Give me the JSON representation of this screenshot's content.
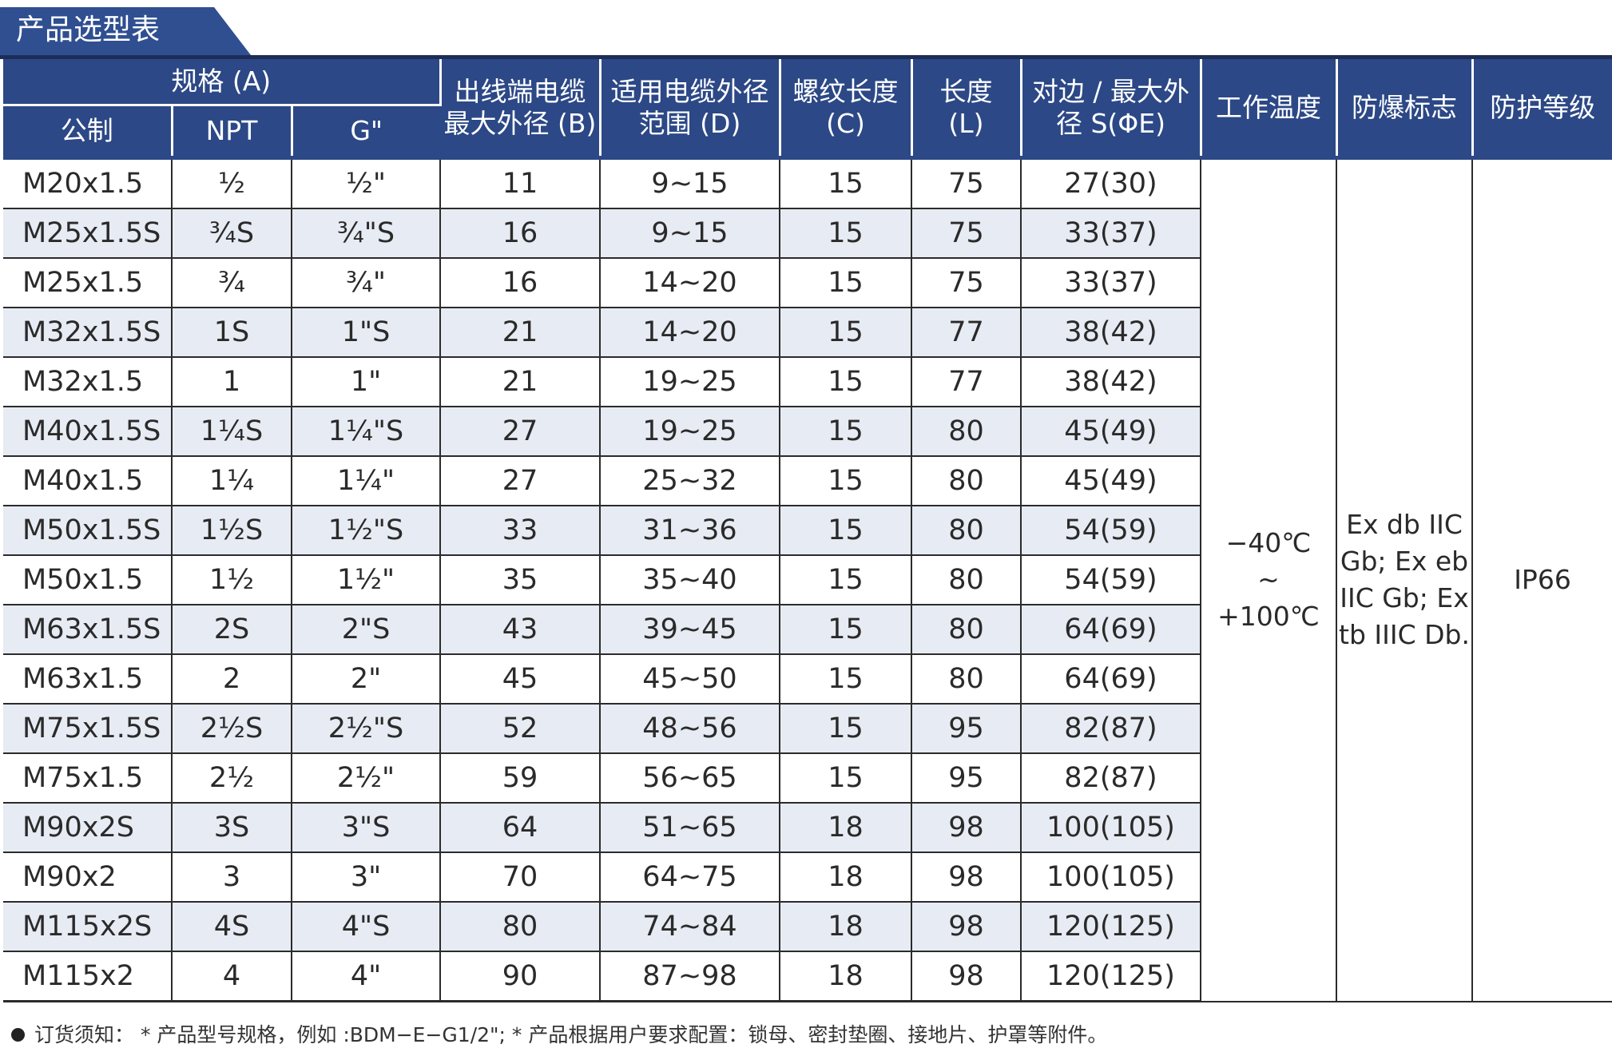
{
  "title": "产品选型表",
  "headers": {
    "spec_group": "规格 (A)",
    "metric": "公制",
    "npt": "NPT",
    "g": "G\"",
    "cable_max_line1": "出线端电缆",
    "cable_max_line2": "最大外径 (B)",
    "cable_range_line1": "适用电缆外径",
    "cable_range_line2": "范围 (D)",
    "thread_len_line1": "螺纹长度",
    "thread_len_line2": "(C)",
    "length_line1": "长度",
    "length_line2": "(L)",
    "across_line1": "对边 / 最大外",
    "across_line2": "径 S(ΦE)",
    "temp": "工作温度",
    "ex_mark": "防爆标志",
    "ip": "防护等级"
  },
  "rows": [
    [
      "M20x1.5",
      "½",
      "½\"",
      "11",
      "9~15",
      "15",
      "75",
      "27(30)"
    ],
    [
      "M25x1.5S",
      "¾S",
      "¾\"S",
      "16",
      "9~15",
      "15",
      "75",
      "33(37)"
    ],
    [
      "M25x1.5",
      "¾",
      "¾\"",
      "16",
      "14~20",
      "15",
      "75",
      "33(37)"
    ],
    [
      "M32x1.5S",
      "1S",
      "1\"S",
      "21",
      "14~20",
      "15",
      "77",
      "38(42)"
    ],
    [
      "M32x1.5",
      "1",
      "1\"",
      "21",
      "19~25",
      "15",
      "77",
      "38(42)"
    ],
    [
      "M40x1.5S",
      "1¼S",
      "1¼\"S",
      "27",
      "19~25",
      "15",
      "80",
      "45(49)"
    ],
    [
      "M40x1.5",
      "1¼",
      "1¼\"",
      "27",
      "25~32",
      "15",
      "80",
      "45(49)"
    ],
    [
      "M50x1.5S",
      "1½S",
      "1½\"S",
      "33",
      "31~36",
      "15",
      "80",
      "54(59)"
    ],
    [
      "M50x1.5",
      "1½",
      "1½\"",
      "35",
      "35~40",
      "15",
      "80",
      "54(59)"
    ],
    [
      "M63x1.5S",
      "2S",
      "2\"S",
      "43",
      "39~45",
      "15",
      "80",
      "64(69)"
    ],
    [
      "M63x1.5",
      "2",
      "2\"",
      "45",
      "45~50",
      "15",
      "80",
      "64(69)"
    ],
    [
      "M75x1.5S",
      "2½S",
      "2½\"S",
      "52",
      "48~56",
      "15",
      "95",
      "82(87)"
    ],
    [
      "M75x1.5",
      "2½",
      "2½\"",
      "59",
      "56~65",
      "15",
      "95",
      "82(87)"
    ],
    [
      "M90x2S",
      "3S",
      "3\"S",
      "64",
      "51~65",
      "18",
      "98",
      "100(105)"
    ],
    [
      "M90x2",
      "3",
      "3\"",
      "70",
      "64~75",
      "18",
      "98",
      "100(105)"
    ],
    [
      "M115x2S",
      "4S",
      "4\"S",
      "80",
      "74~84",
      "18",
      "98",
      "120(125)"
    ],
    [
      "M115x2",
      "4",
      "4\"",
      "90",
      "87~98",
      "18",
      "98",
      "120(125)"
    ]
  ],
  "merged": {
    "temp_line1": "−40℃",
    "temp_line2": "~",
    "temp_line3": "+100℃",
    "ex_line1": "Ex db IIC",
    "ex_line2": "Gb; Ex eb",
    "ex_line3": "IIC Gb; Ex",
    "ex_line4": "tb IIIC Db.",
    "ip": "IP66"
  },
  "note": "订货须知： * 产品型号规格，例如 :BDM−E−G1/2\";   * 产品根据用户要求配置：锁母、密封垫圈、接地片、护罩等附件。",
  "colors": {
    "header_bg": "#2c4886",
    "title_bg": "#2f4f91",
    "band": "#e7ebf3"
  }
}
